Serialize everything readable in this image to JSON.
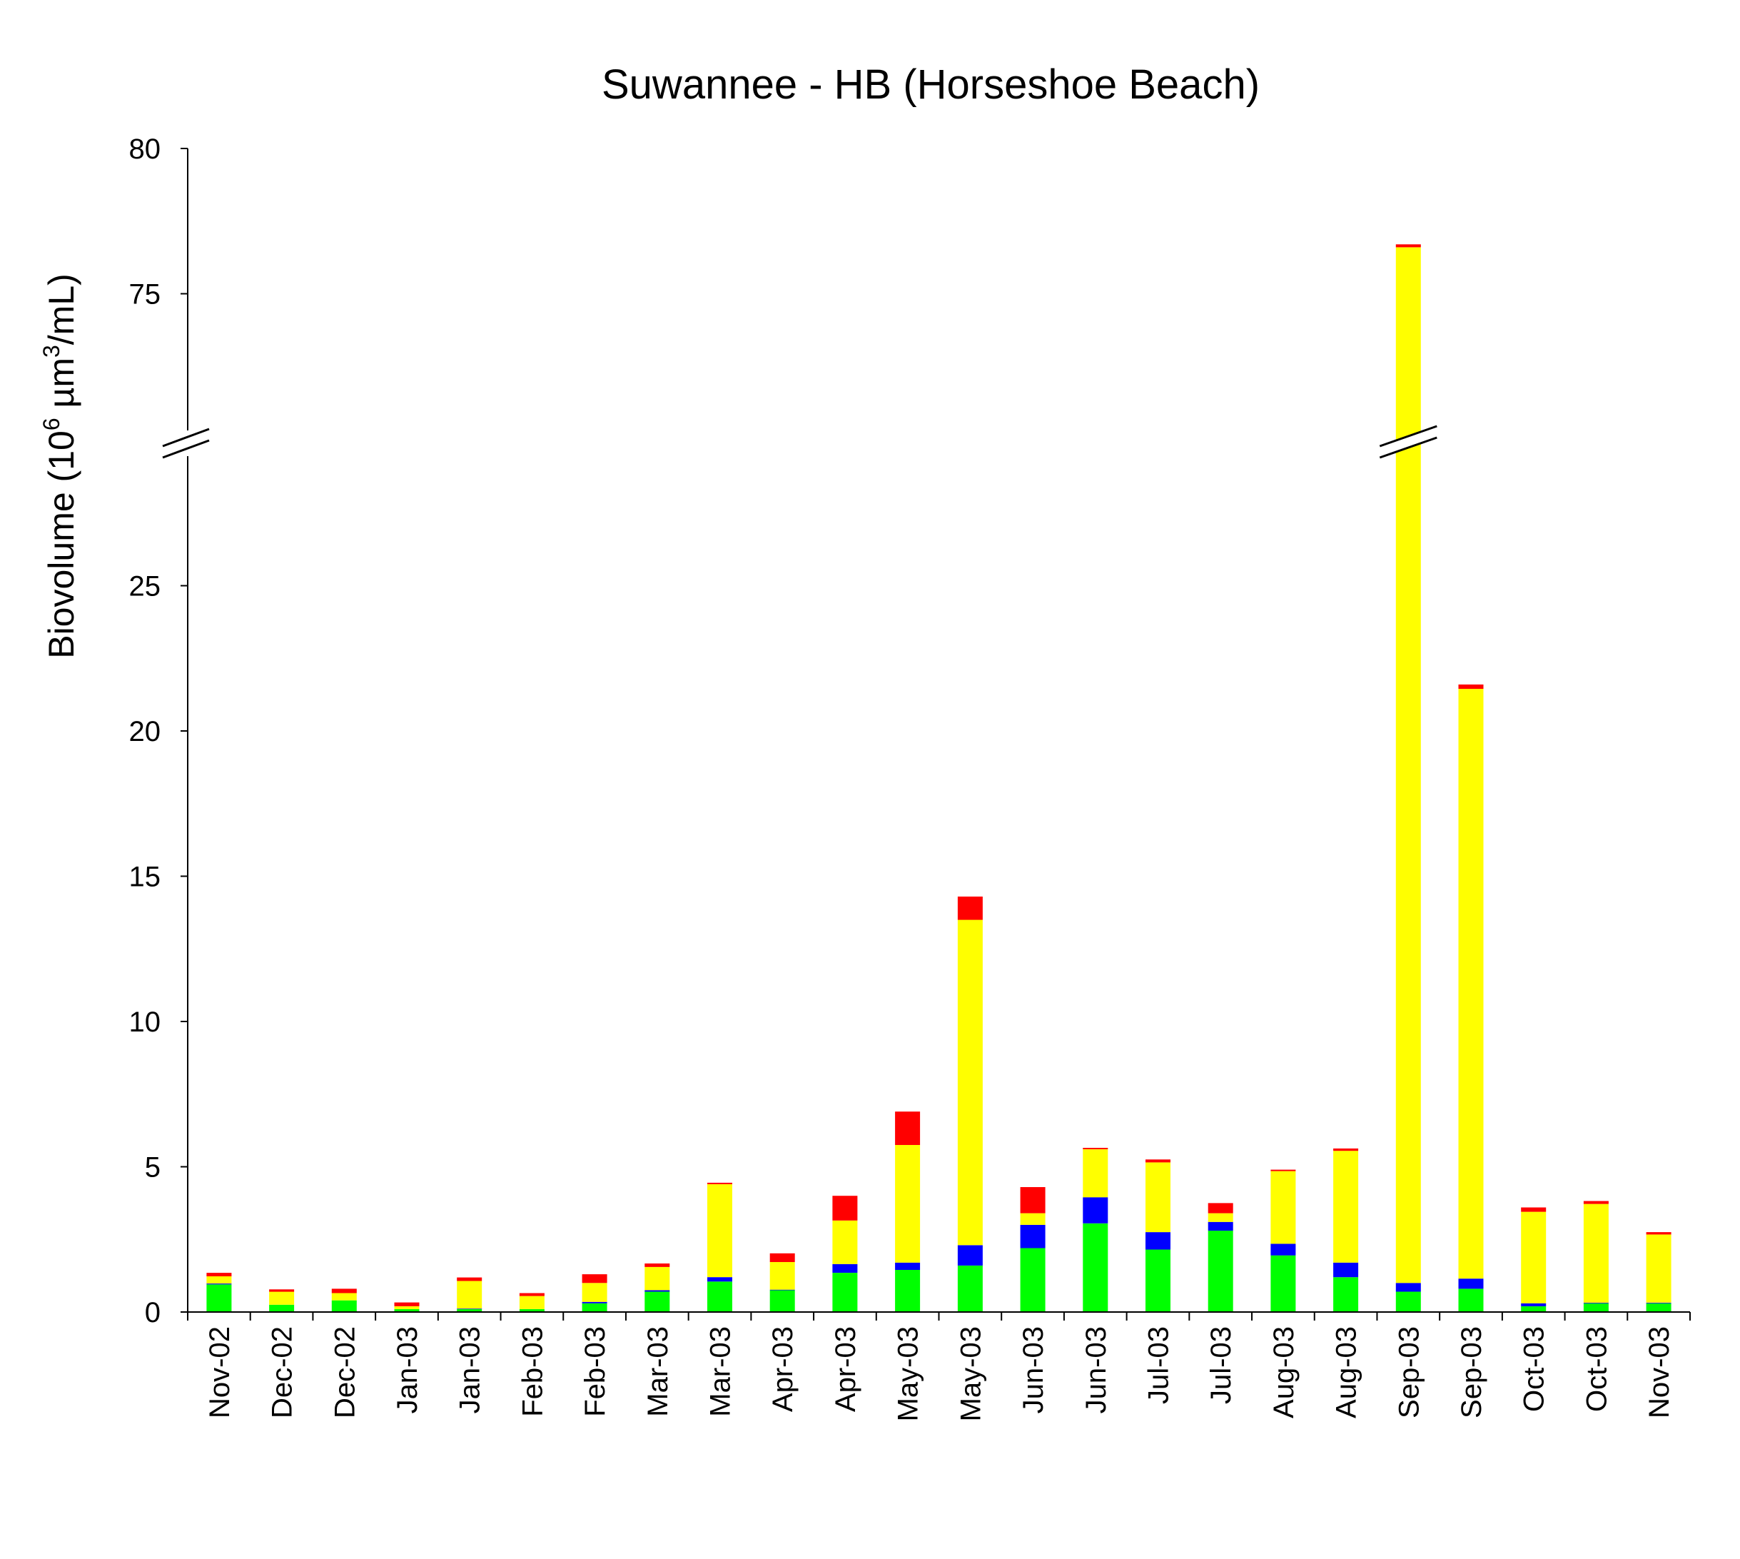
{
  "chart_data": {
    "type": "bar",
    "stacked": true,
    "title": "Suwannee - HB (Horseshoe Beach)",
    "ylabel": {
      "prefix": "Biovolume (10",
      "sup1": "6",
      "mid": " µm",
      "sup2": "3",
      "suffix": "/mL)"
    },
    "xlabel": "",
    "broken_y_axis": {
      "lower_range": [
        0,
        28.5
      ],
      "upper_range": [
        70,
        80
      ]
    },
    "yticks": [
      0,
      5,
      10,
      15,
      20,
      25,
      75,
      80
    ],
    "ytick_labels": [
      "0",
      "5",
      "10",
      "15",
      "20",
      "25",
      "75",
      "80"
    ],
    "legend": "none",
    "categories": [
      "Nov-02",
      "Dec-02",
      "Dec-02",
      "Jan-03",
      "Jan-03",
      "Feb-03",
      "Feb-03",
      "Mar-03",
      "Mar-03",
      "Apr-03",
      "Apr-03",
      "May-03",
      "May-03",
      "Jun-03",
      "Jun-03",
      "Jul-03",
      "Jul-03",
      "Aug-03",
      "Aug-03",
      "Sep-03",
      "Sep-03",
      "Oct-03",
      "Oct-03",
      "Nov-03"
    ],
    "series": [
      {
        "color": "#00ff00",
        "values": [
          0.95,
          0.25,
          0.4,
          0.1,
          0.1,
          0.1,
          0.3,
          0.7,
          1.05,
          0.75,
          1.35,
          1.45,
          1.6,
          2.2,
          3.05,
          2.15,
          2.8,
          1.95,
          1.2,
          0.7,
          0.8,
          0.2,
          0.3,
          0.3
        ]
      },
      {
        "color": "#0000ff",
        "values": [
          0.03,
          0.0,
          0.0,
          0.0,
          0.02,
          0.0,
          0.05,
          0.05,
          0.15,
          0.02,
          0.3,
          0.25,
          0.7,
          0.8,
          0.9,
          0.6,
          0.3,
          0.4,
          0.5,
          0.3,
          0.35,
          0.1,
          0.02,
          0.02
        ]
      },
      {
        "color": "#ffff00",
        "values": [
          0.25,
          0.45,
          0.25,
          0.1,
          0.95,
          0.45,
          0.65,
          0.8,
          3.2,
          0.95,
          1.5,
          4.05,
          11.2,
          0.4,
          1.65,
          2.4,
          0.3,
          2.5,
          3.85,
          75.6,
          20.3,
          3.15,
          3.4,
          2.35
        ]
      },
      {
        "color": "#ff0000",
        "values": [
          0.12,
          0.08,
          0.15,
          0.13,
          0.12,
          0.1,
          0.3,
          0.12,
          0.05,
          0.3,
          0.85,
          1.15,
          0.8,
          0.9,
          0.05,
          0.1,
          0.35,
          0.05,
          0.08,
          0.1,
          0.15,
          0.15,
          0.1,
          0.08
        ]
      }
    ]
  }
}
